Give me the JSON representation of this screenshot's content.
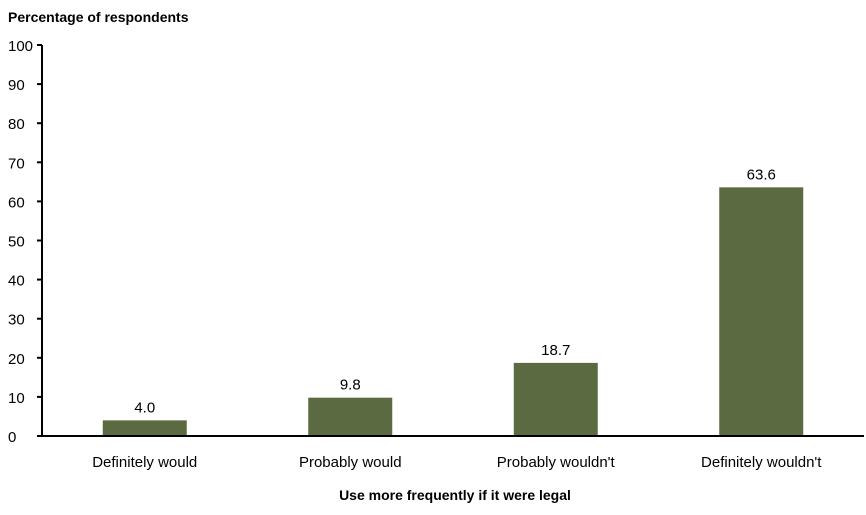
{
  "chart_data": {
    "type": "bar",
    "ylabel": "Percentage of respondents",
    "xlabel": "Use more frequently if it were legal",
    "categories": [
      "Definitely would",
      "Probably would",
      "Probably wouldn't",
      "Definitely wouldn't"
    ],
    "values": [
      4.0,
      9.8,
      18.7,
      63.6
    ],
    "value_labels": [
      "4.0",
      "9.8",
      "18.7",
      "63.6"
    ],
    "ylim": [
      0,
      100
    ],
    "yticks": [
      0,
      10,
      20,
      30,
      40,
      50,
      60,
      70,
      80,
      90,
      100
    ],
    "ytick_labels": [
      "0",
      "10",
      "20",
      "30",
      "40",
      "50",
      "60",
      "70",
      "80",
      "90",
      "100"
    ],
    "grid": false,
    "legend": "none",
    "colors": {
      "bar": "#5b6a40",
      "axis": "#000000"
    }
  }
}
